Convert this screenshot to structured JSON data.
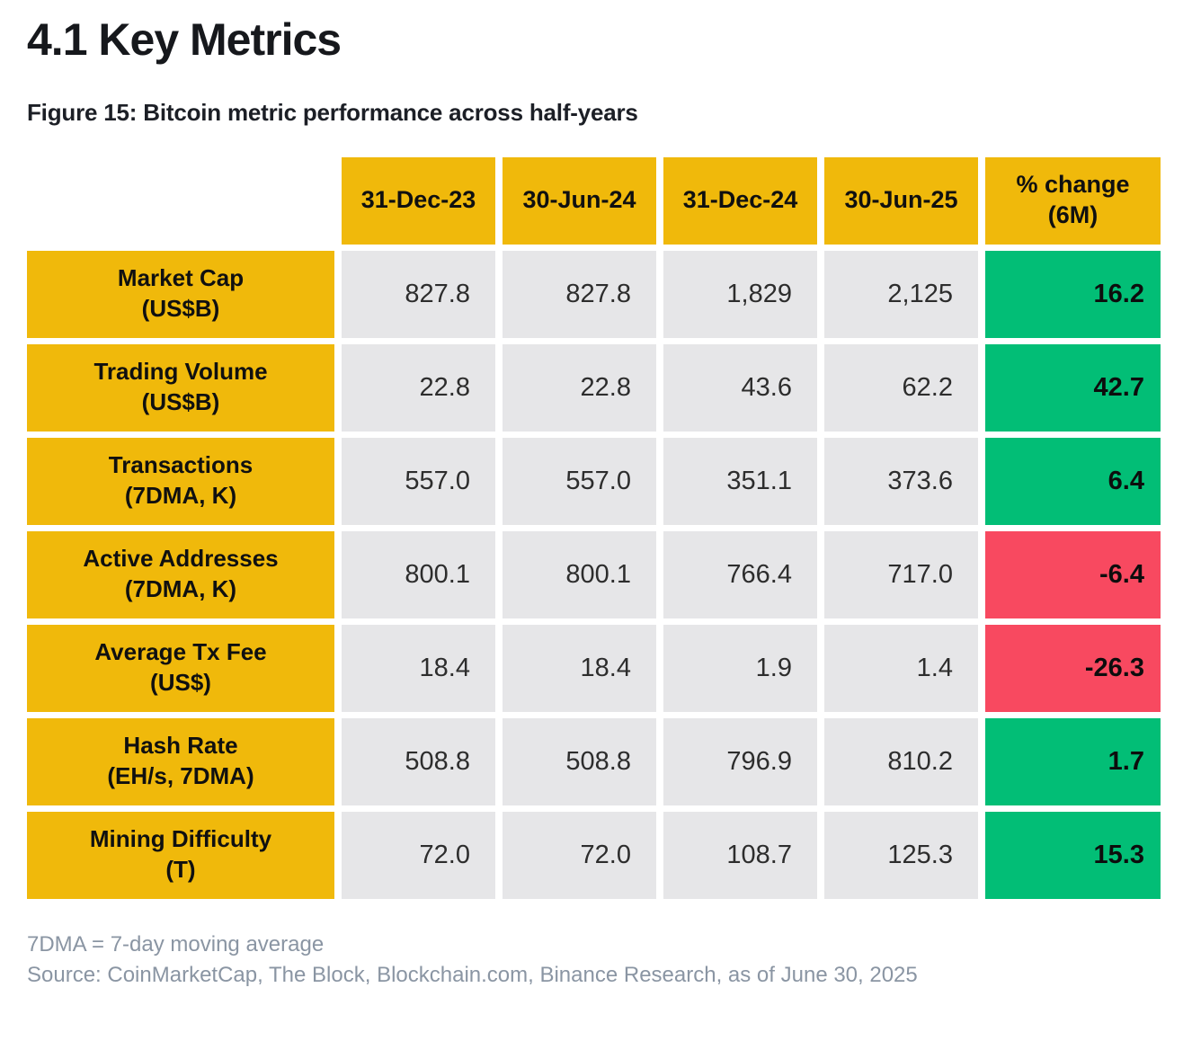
{
  "header": {
    "title": "4.1 Key Metrics",
    "caption": "Figure 15: Bitcoin metric performance across half-years"
  },
  "chart_data": {
    "type": "table",
    "title": "Figure 15: Bitcoin metric performance across half-years",
    "columns": [
      "31-Dec-23",
      "30-Jun-24",
      "31-Dec-24",
      "30-Jun-25",
      "% change (6M)"
    ],
    "pct_header_label": "% change\n(6M)",
    "rows": [
      {
        "metric": "Market Cap (US$B)",
        "label": "Market Cap\n(US$B)",
        "values": [
          "827.8",
          "827.8",
          "1,829",
          "2,125"
        ],
        "pct_change": "16.2",
        "trend": "positive"
      },
      {
        "metric": "Trading Volume (US$B)",
        "label": "Trading Volume\n(US$B)",
        "values": [
          "22.8",
          "22.8",
          "43.6",
          "62.2"
        ],
        "pct_change": "42.7",
        "trend": "positive"
      },
      {
        "metric": "Transactions (7DMA, K)",
        "label": "Transactions\n(7DMA, K)",
        "values": [
          "557.0",
          "557.0",
          "351.1",
          "373.6"
        ],
        "pct_change": "6.4",
        "trend": "positive"
      },
      {
        "metric": "Active Addresses (7DMA, K)",
        "label": "Active Addresses\n(7DMA, K)",
        "values": [
          "800.1",
          "800.1",
          "766.4",
          "717.0"
        ],
        "pct_change": "-6.4",
        "trend": "negative"
      },
      {
        "metric": "Average Tx Fee (US$)",
        "label": "Average Tx Fee\n(US$)",
        "values": [
          "18.4",
          "18.4",
          "1.9",
          "1.4"
        ],
        "pct_change": "-26.3",
        "trend": "negative"
      },
      {
        "metric": "Hash Rate (EH/s, 7DMA)",
        "label": "Hash Rate\n(EH/s, 7DMA)",
        "values": [
          "508.8",
          "508.8",
          "796.9",
          "810.2"
        ],
        "pct_change": "1.7",
        "trend": "positive"
      },
      {
        "metric": "Mining Difficulty (T)",
        "label": "Mining Difficulty\n(T)",
        "values": [
          "72.0",
          "72.0",
          "108.7",
          "125.3"
        ],
        "pct_change": "15.3",
        "trend": "positive"
      }
    ]
  },
  "footnotes": {
    "definition": "7DMA = 7-day moving average",
    "source": "Source: CoinMarketCap, The Block, Blockchain.com, Binance Research, as of June 30, 2025"
  },
  "colors": {
    "accent": "#F0B90B",
    "positive": "#02BE76",
    "negative": "#F84960",
    "cell": "#E6E6E8",
    "muted": "#8A95A3"
  }
}
